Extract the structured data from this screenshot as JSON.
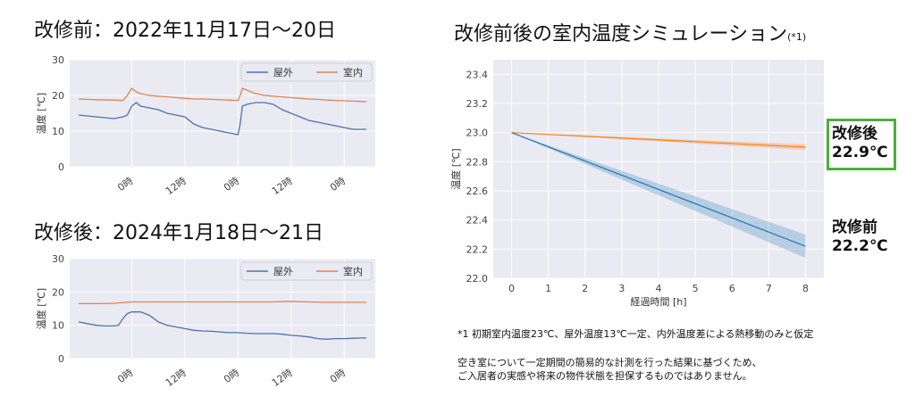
{
  "titles": {
    "before": "改修前：2022年11月17日～20日",
    "after": "改修後：2024年1月18日～21日",
    "sim": "改修前後の室内温度シミュレーション",
    "sim_note_mark": "(*1)"
  },
  "annotations": {
    "after_label": "改修後",
    "after_value": "22.9℃",
    "before_label": "改修前",
    "before_value": "22.2℃"
  },
  "notes": {
    "n1": "*1 初期室内温度23℃、屋外温度13℃一定、内外温度差による熱移動のみと仮定",
    "n2": "空き室について一定期間の簡易的な計測を行った結果に基づくため、",
    "n3": "ご入居者の実感や将来の物件状態を担保するものではありません。"
  },
  "colors": {
    "outdoor": "#4c72b0",
    "indoor": "#dd8452",
    "sim_after": "#ff7f0e",
    "sim_before": "#1f77b4",
    "plot_bg": "#eaeaf2",
    "box": "#4caf3a"
  },
  "chart_data": [
    {
      "type": "line",
      "title": "改修前：2022年11月17日～20日",
      "ylabel": "温度 [℃]",
      "ylim": [
        0,
        30
      ],
      "yticks": [
        0,
        10,
        20,
        30
      ],
      "xticks": [
        "0時",
        "12時",
        "0時",
        "12時",
        "0時"
      ],
      "xtick_hours": [
        12,
        24,
        36,
        48,
        60
      ],
      "legend": "top-right",
      "series": [
        {
          "name": "屋外",
          "x": [
            0,
            4,
            8,
            10,
            11,
            12,
            13,
            14,
            16,
            18,
            20,
            22,
            24,
            26,
            28,
            30,
            32,
            34,
            36,
            36.5,
            37,
            38,
            40,
            42,
            44,
            46,
            48,
            50,
            52,
            54,
            56,
            58,
            60,
            62,
            64,
            65
          ],
          "values": [
            14.5,
            14,
            13.5,
            14,
            14.5,
            17,
            18,
            17,
            16.5,
            16,
            15,
            14.5,
            14,
            12,
            11,
            10.5,
            10,
            9.5,
            9,
            12,
            17,
            17.5,
            18,
            18,
            17.5,
            16,
            15,
            14,
            13,
            12.5,
            12,
            11.5,
            11,
            10.5,
            10.5,
            10.5
          ]
        },
        {
          "name": "室内",
          "x": [
            0,
            4,
            8,
            10,
            11,
            12,
            13,
            14,
            16,
            18,
            20,
            22,
            24,
            26,
            28,
            30,
            32,
            34,
            36,
            36.5,
            37,
            38,
            40,
            42,
            44,
            46,
            48,
            50,
            52,
            54,
            56,
            58,
            60,
            62,
            64,
            65
          ],
          "values": [
            19,
            18.8,
            18.7,
            18.6,
            20,
            22,
            21,
            20.5,
            20,
            19.8,
            19.6,
            19.4,
            19.2,
            19,
            19,
            18.9,
            18.8,
            18.7,
            18.6,
            20,
            22,
            21.5,
            20.5,
            20,
            19.8,
            19.6,
            19.4,
            19.2,
            19,
            18.9,
            18.7,
            18.6,
            18.5,
            18.4,
            18.3,
            18.3
          ]
        }
      ]
    },
    {
      "type": "line",
      "title": "改修後：2024年1月18日～21日",
      "ylabel": "温度 [℃]",
      "ylim": [
        0,
        30
      ],
      "yticks": [
        0,
        10,
        20,
        30
      ],
      "xticks": [
        "0時",
        "12時",
        "0時",
        "12時",
        "0時"
      ],
      "xtick_hours": [
        12,
        24,
        36,
        48,
        60
      ],
      "legend": "top-right",
      "series": [
        {
          "name": "屋外",
          "x": [
            0,
            2,
            4,
            6,
            8,
            9,
            10,
            11,
            12,
            14,
            16,
            18,
            20,
            22,
            24,
            26,
            28,
            30,
            32,
            34,
            36,
            38,
            40,
            42,
            44,
            46,
            48,
            50,
            52,
            54,
            56,
            58,
            60,
            62,
            64,
            65
          ],
          "values": [
            11,
            10.5,
            10,
            9.8,
            9.8,
            10,
            12,
            13.5,
            14,
            14,
            13,
            11,
            10,
            9.5,
            9,
            8.5,
            8.3,
            8.2,
            8,
            7.8,
            7.8,
            7.6,
            7.5,
            7.5,
            7.5,
            7.3,
            7,
            6.8,
            6.5,
            6,
            5.8,
            6,
            6,
            6.1,
            6.2,
            6.2
          ]
        },
        {
          "name": "室内",
          "x": [
            0,
            4,
            8,
            10,
            12,
            16,
            20,
            24,
            28,
            32,
            36,
            40,
            44,
            48,
            52,
            56,
            60,
            65
          ],
          "values": [
            16.5,
            16.5,
            16.6,
            16.8,
            17,
            17,
            17,
            17,
            17,
            17,
            17,
            17,
            17,
            17.2,
            17,
            16.9,
            16.9,
            16.9
          ]
        }
      ]
    },
    {
      "type": "line",
      "title": "改修前後の室内温度シミュレーション(*1)",
      "xlabel": "経過時間 [h]",
      "ylabel": "温度 [℃]",
      "xlim": [
        -0.5,
        8.5
      ],
      "ylim": [
        22.0,
        23.5
      ],
      "xticks": [
        0,
        1,
        2,
        3,
        4,
        5,
        6,
        7,
        8
      ],
      "yticks": [
        22.0,
        22.2,
        22.4,
        22.6,
        22.8,
        23.0,
        23.2,
        23.4
      ],
      "series": [
        {
          "name": "改修後",
          "x": [
            0,
            8
          ],
          "values": [
            23.0,
            22.9
          ],
          "band": [
            0.0,
            0.02
          ]
        },
        {
          "name": "改修前",
          "x": [
            0,
            8
          ],
          "values": [
            23.0,
            22.22
          ],
          "band": [
            0.0,
            0.08
          ]
        }
      ]
    }
  ]
}
